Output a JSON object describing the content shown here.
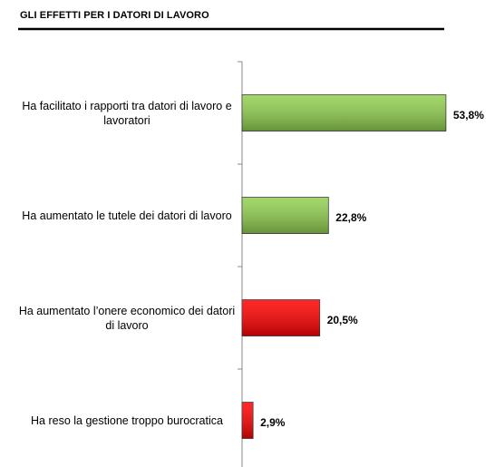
{
  "chart_data": {
    "type": "bar",
    "orientation": "horizontal",
    "title": "GLI EFFETTI PER I DATORI DI LAVORO",
    "categories": [
      "Ha facilitato i rapporti tra datori di lavoro e lavoratori",
      "Ha aumentato le tutele dei datori di lavoro",
      "Ha aumentato l’onere economico dei datori di lavoro",
      "Ha reso la gestione troppo burocratica"
    ],
    "values": [
      53.8,
      22.8,
      20.5,
      2.9
    ],
    "value_labels": [
      "53,8%",
      "22,8%",
      "20,5%",
      "2,9%"
    ],
    "colors": [
      "#92d050",
      "#92d050",
      "#ff0000",
      "#ff0000"
    ]
  }
}
